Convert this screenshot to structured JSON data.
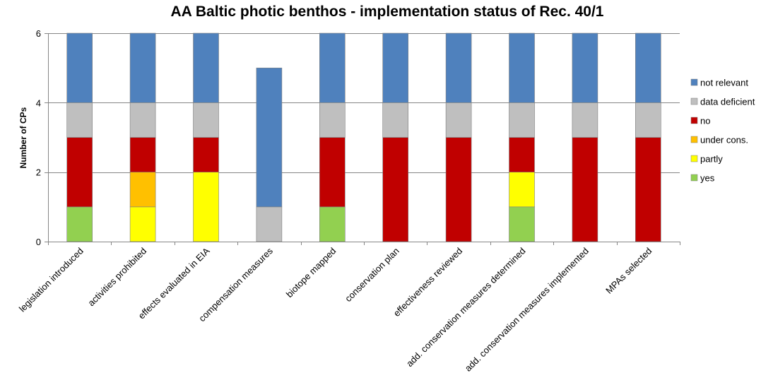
{
  "chart_data": {
    "type": "bar",
    "stacked": true,
    "title": "AA Baltic photic benthos - implementation status of Rec. 40/1",
    "xlabel": "",
    "ylabel": "Number of CPs",
    "ylim": [
      0,
      6
    ],
    "yticks": [
      0,
      2,
      4,
      6
    ],
    "grid": true,
    "legend_position": "right",
    "categories": [
      "legislation introduced",
      "activities prohibited",
      "effects evaluated in EIA",
      "compensation measures",
      "biotope mapped",
      "conservation plan",
      "effectiveness reviewed",
      "add. conservation measures determined",
      "add. conservation measures implemented",
      "MPAs selected"
    ],
    "series": [
      {
        "name": "yes",
        "color": "#92D050",
        "values": [
          1,
          0,
          0,
          0,
          1,
          0,
          0,
          1,
          0,
          0
        ]
      },
      {
        "name": "partly",
        "color": "#FFFF00",
        "values": [
          0,
          1,
          2,
          0,
          0,
          0,
          0,
          1,
          0,
          0
        ]
      },
      {
        "name": "under cons.",
        "color": "#FFC000",
        "values": [
          0,
          1,
          0,
          0,
          0,
          0,
          0,
          0,
          0,
          0
        ]
      },
      {
        "name": "no",
        "color": "#C00000",
        "values": [
          2,
          1,
          1,
          0,
          2,
          3,
          3,
          1,
          3,
          3
        ]
      },
      {
        "name": "data deficient",
        "color": "#BFBFBF",
        "values": [
          1,
          1,
          1,
          1,
          1,
          1,
          1,
          1,
          1,
          1
        ]
      },
      {
        "name": "not relevant",
        "color": "#4F81BD",
        "values": [
          2,
          2,
          2,
          4,
          2,
          2,
          2,
          2,
          2,
          2
        ]
      }
    ],
    "legend_order": [
      "not relevant",
      "data deficient",
      "no",
      "under cons.",
      "partly",
      "yes"
    ]
  }
}
